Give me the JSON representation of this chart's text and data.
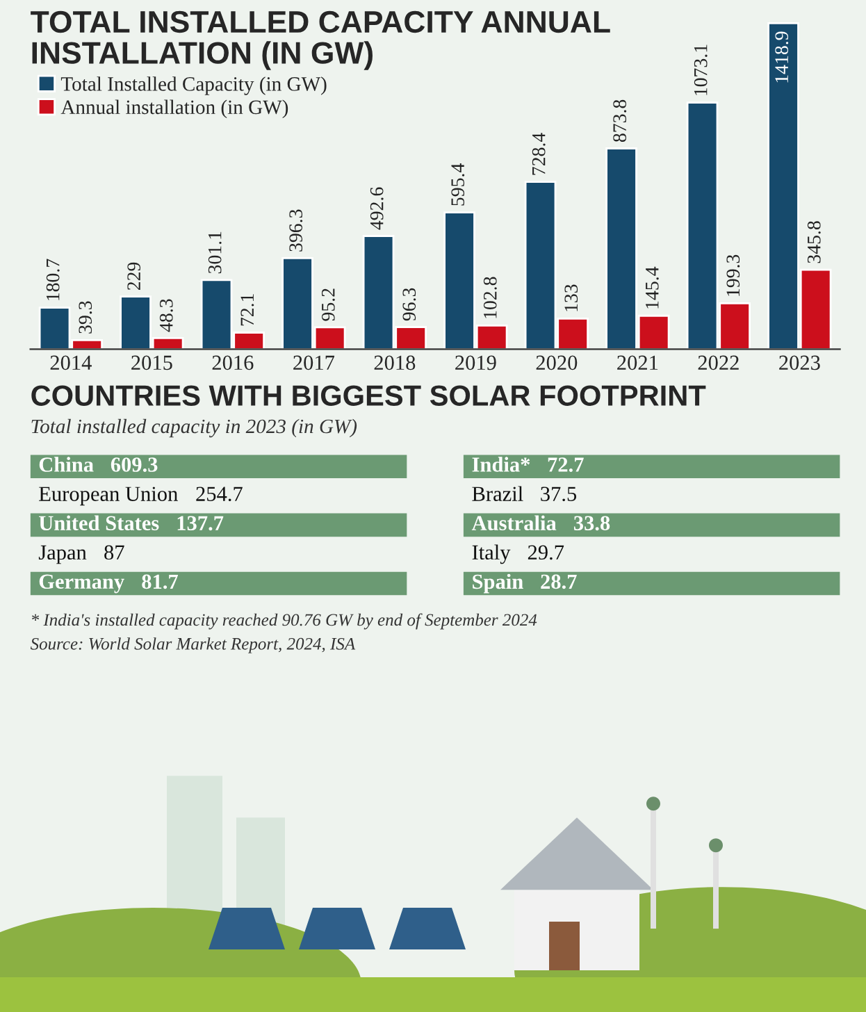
{
  "chart_data": [
    {
      "type": "bar",
      "title": "TOTAL INSTALLED CAPACITY ANNUAL INSTALLATION (IN GW)",
      "categories": [
        "2014",
        "2015",
        "2016",
        "2017",
        "2018",
        "2019",
        "2020",
        "2021",
        "2022",
        "2023"
      ],
      "series": [
        {
          "name": "Total Installed Capacity (in GW)",
          "color": "#164a6c",
          "values": [
            180.7,
            229,
            301.1,
            396.3,
            492.6,
            595.4,
            728.4,
            873.8,
            1073.1,
            1418.9
          ]
        },
        {
          "name": "Annual installation (in GW)",
          "color": "#cc0f1c",
          "values": [
            39.3,
            48.3,
            72.1,
            95.2,
            96.3,
            102.8,
            133,
            145.4,
            199.3,
            345.8
          ]
        }
      ],
      "data_labels": true,
      "legend": "top left"
    },
    {
      "type": "other",
      "title": "COUNTRIES WITH BIGGEST SOLAR FOOTPRINT",
      "subtitle": "Total installed capacity in 2023 (in GW)",
      "categories": [
        "China",
        "European Union",
        "United States",
        "Japan",
        "Germany",
        "India*",
        "Brazil",
        "Australia",
        "Italy",
        "Spain"
      ],
      "values": [
        609.3,
        254.7,
        137.7,
        87,
        81.7,
        72.7,
        37.5,
        33.8,
        29.7,
        28.7
      ],
      "color": "#6b9a73",
      "data_labels": true,
      "annotations": [
        "* India's installed capacity reached 90.76 GW by end of September 2024",
        "Source: World Solar Market Report, 2024, ISA"
      ]
    }
  ]
}
